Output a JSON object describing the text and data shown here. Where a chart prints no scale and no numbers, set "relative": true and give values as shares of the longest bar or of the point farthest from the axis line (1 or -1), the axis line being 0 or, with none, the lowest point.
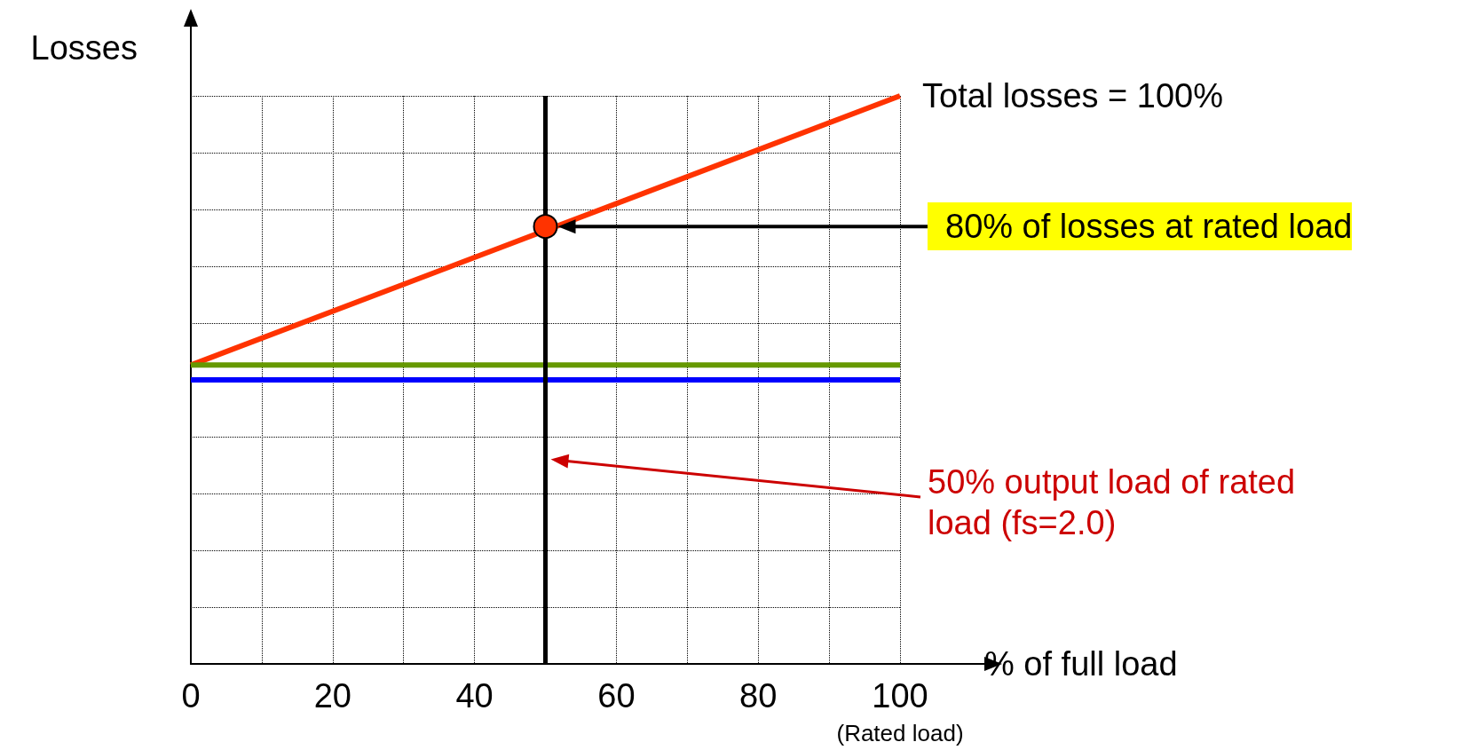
{
  "chart_data": {
    "type": "line",
    "relative": true,
    "ylabel": "Losses",
    "xlabel": "% of full load",
    "xlim": [
      0,
      100
    ],
    "xticks": [
      0,
      {
        "value": 10,
        "label": null
      },
      20,
      {
        "value": 30,
        "label": null
      },
      40,
      {
        "value": 50,
        "label": null
      },
      60,
      {
        "value": 70,
        "label": null
      },
      80,
      {
        "value": 90,
        "label": null
      },
      {
        "value": 100,
        "label": "100\n(Rated load)"
      }
    ],
    "grid": true,
    "line_style": "solid",
    "marker": "none",
    "series": [
      {
        "color": "#ff3300",
        "x": [
          0,
          100
        ],
        "values": [
          0.526,
          1
        ]
      },
      {
        "color": "#669900",
        "x": [
          0,
          100
        ],
        "values": [
          0.526,
          0.526
        ]
      },
      {
        "color": "#0000ff",
        "x": [
          0,
          100
        ],
        "values": [
          0.5,
          0.5
        ]
      },
      {
        "type": "scatter",
        "marker": "circle",
        "color": "#ff3300",
        "x": [
          50
        ],
        "values": [
          0.77
        ]
      }
    ],
    "ref_lines": [
      {
        "axis": "x",
        "value": 50,
        "color": "#000000"
      }
    ],
    "annotations": [
      "Total losses = 100%",
      "80% of losses at rated load",
      "50% output load of rated load (fs=2.0)"
    ]
  }
}
